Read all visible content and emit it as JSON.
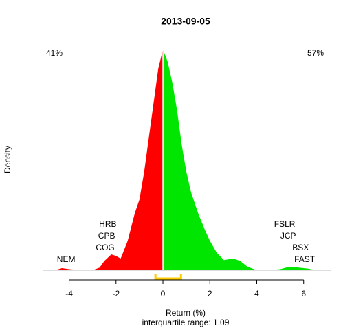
{
  "chart_data": {
    "type": "area",
    "title": "2013-09-05",
    "xlabel": "Return (%)",
    "subtitle": "interquartile range: 1.09",
    "ylabel": "Density",
    "x": [
      -5.1,
      -4.6,
      -4.3,
      -4.0,
      -3.5,
      -3.0,
      -2.7,
      -2.5,
      -2.2,
      -2.0,
      -1.8,
      -1.5,
      -1.2,
      -1.0,
      -0.8,
      -0.6,
      -0.4,
      -0.2,
      0,
      0.2,
      0.4,
      0.6,
      0.8,
      1.0,
      1.2,
      1.5,
      1.8,
      2.0,
      2.3,
      2.6,
      3.0,
      3.3,
      3.6,
      4.0,
      4.5,
      5.0,
      5.4,
      5.8,
      6.2,
      6.5
    ],
    "values": [
      0,
      0,
      0.004,
      0.002,
      0,
      0,
      0.005,
      0.018,
      0.031,
      0.028,
      0.023,
      0.058,
      0.112,
      0.139,
      0.193,
      0.261,
      0.328,
      0.396,
      0.434,
      0.41,
      0.369,
      0.315,
      0.247,
      0.193,
      0.153,
      0.112,
      0.078,
      0.058,
      0.034,
      0.02,
      0.023,
      0.018,
      0.007,
      0,
      0,
      0.002,
      0.007,
      0.005,
      0.003,
      0
    ],
    "negative_color": "#ff0000",
    "positive_color": "#00e600",
    "xlim": [
      -5.13,
      7.18
    ],
    "ylim": [
      0,
      0.45
    ],
    "xticks": [
      -4,
      -2,
      0,
      2,
      4,
      6
    ],
    "share_labels": [
      {
        "text": "41%",
        "color": "#ff0000",
        "corner": "top-left"
      },
      {
        "text": "57%",
        "color": "#009900",
        "corner": "top-right"
      }
    ],
    "quartiles": [
      -0.32,
      0.77
    ],
    "quartile_color": "#ffcc00",
    "annotations": [
      {
        "text": "NEM",
        "x": -4.13,
        "row": 0
      },
      {
        "text": "COG",
        "x": -2.46,
        "row": 1
      },
      {
        "text": "CPB",
        "x": -2.4,
        "row": 2
      },
      {
        "text": "HRB",
        "x": -2.35,
        "row": 3
      },
      {
        "text": "FAST",
        "x": 6.04,
        "row": 0
      },
      {
        "text": "BSX",
        "x": 5.87,
        "row": 1
      },
      {
        "text": "JCP",
        "x": 5.34,
        "row": 2
      },
      {
        "text": "FSLR",
        "x": 5.19,
        "row": 3
      }
    ]
  }
}
